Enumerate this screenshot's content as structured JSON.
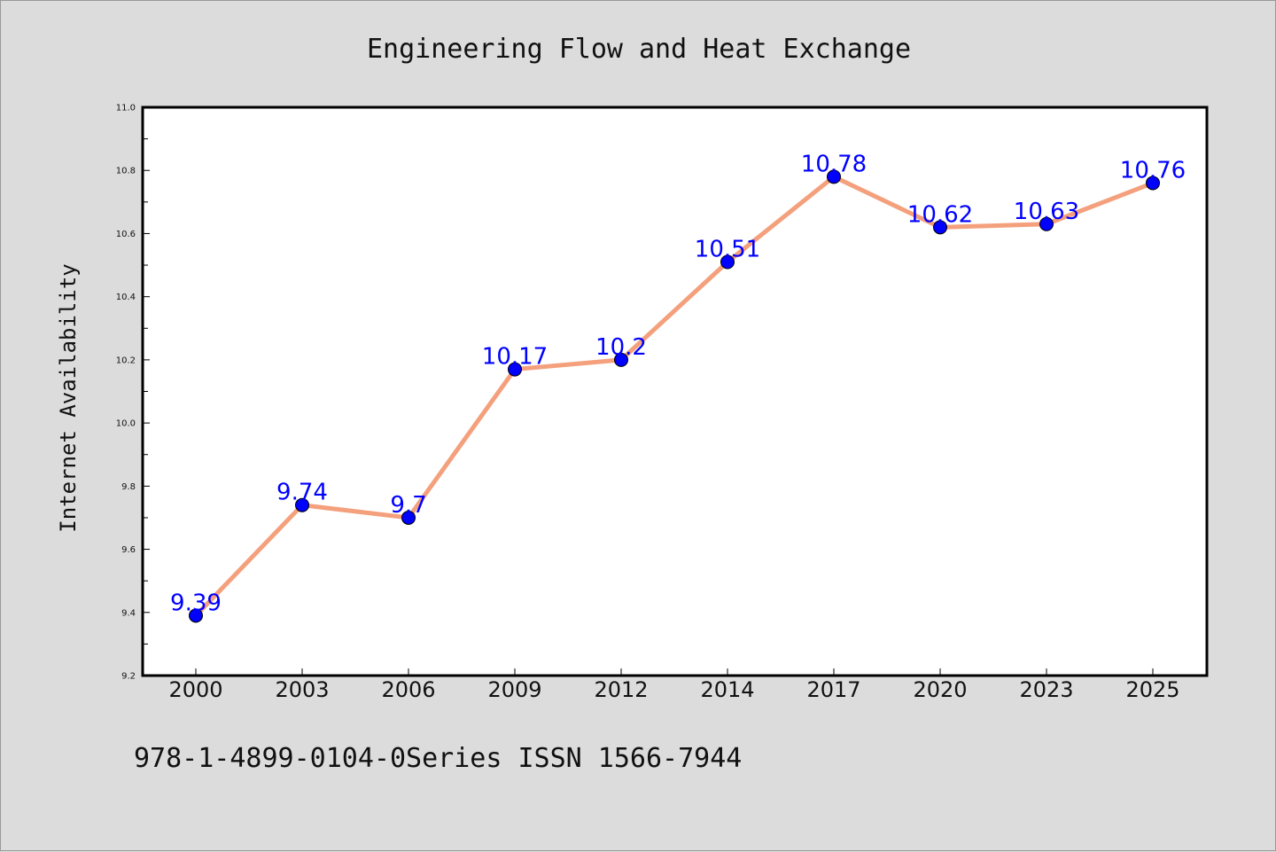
{
  "chart_data": {
    "type": "line",
    "title": "Engineering Flow and Heat Exchange",
    "xlabel": "",
    "ylabel": "Internet Availability",
    "categories": [
      "2000",
      "2003",
      "2006",
      "2009",
      "2012",
      "2014",
      "2017",
      "2020",
      "2023",
      "2025"
    ],
    "series": [
      {
        "values": [
          9.39,
          9.74,
          9.7,
          10.17,
          10.2,
          10.51,
          10.78,
          10.62,
          10.63,
          10.76
        ],
        "data_labels": [
          "9.39",
          "9.74",
          "9.7",
          "10.17",
          "10.2",
          "10.51",
          "10.78",
          "10.62",
          "10.63",
          "10.76"
        ]
      }
    ],
    "ylim": [
      9.2,
      11.0
    ],
    "yticks": [
      "9.2",
      "9.4",
      "9.6",
      "9.8",
      "10.0",
      "10.2",
      "10.4",
      "10.6",
      "10.8",
      "11.0"
    ],
    "grid": false,
    "legend": "none",
    "colors": {
      "line": "#f4a07c",
      "marker": "#0000ff",
      "label": "#0000ff",
      "background": "#dcdcdc",
      "plot_bg": "#ffffff"
    }
  },
  "footer_text": "978-1-4899-0104-0Series ISSN 1566-7944"
}
